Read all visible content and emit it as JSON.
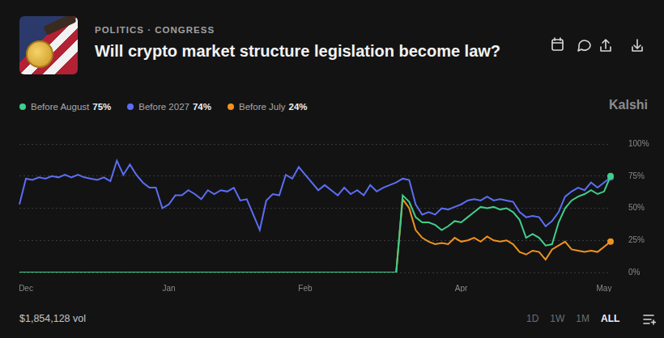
{
  "header": {
    "category": "POLITICS · CONGRESS",
    "title": "Will crypto market structure legislation become law?",
    "watermark": "Kalshi"
  },
  "chart_data": {
    "type": "line",
    "categories": [
      null,
      "Dec",
      null,
      null,
      null,
      null,
      null,
      null,
      null,
      null,
      null,
      null,
      null,
      null,
      null,
      null,
      null,
      null,
      null,
      null,
      null,
      null,
      null,
      "Jan",
      null,
      null,
      null,
      null,
      null,
      null,
      null,
      null,
      null,
      null,
      null,
      null,
      null,
      null,
      null,
      null,
      null,
      null,
      null,
      null,
      "Feb",
      null,
      null,
      null,
      null,
      null,
      null,
      null,
      null,
      null,
      null,
      null,
      null,
      null,
      null,
      null,
      null,
      null,
      null,
      null,
      null,
      null,
      null,
      null,
      "Apr",
      null,
      null,
      null,
      null,
      null,
      null,
      null,
      null,
      null,
      null,
      null,
      null,
      null,
      null,
      null,
      null,
      null,
      null,
      null,
      null,
      null,
      "May",
      null
    ],
    "series": [
      {
        "name": "Before August",
        "color": "#3fcf8a",
        "legend_value": {
          "value": 75,
          "label": "75%"
        },
        "values": [
          0,
          0,
          0,
          0,
          0,
          0,
          0,
          0,
          0,
          0,
          0,
          0,
          0,
          0,
          0,
          0,
          0,
          0,
          0,
          0,
          0,
          0,
          0,
          0,
          0,
          0,
          0,
          0,
          0,
          0,
          0,
          0,
          0,
          0,
          0,
          0,
          0,
          0,
          0,
          0,
          0,
          0,
          0,
          0,
          0,
          0,
          0,
          0,
          0,
          0,
          0,
          0,
          0,
          0,
          0,
          0,
          0,
          0,
          0,
          60,
          55,
          43,
          39,
          39,
          37,
          33,
          36,
          40,
          39,
          43,
          47,
          51,
          50,
          51,
          49,
          50,
          47,
          41,
          27,
          30,
          27,
          21,
          22,
          39,
          50,
          56,
          59,
          61,
          64,
          61,
          63,
          75
        ]
      },
      {
        "name": "Before 2027",
        "color": "#5b6ef2",
        "legend_value": {
          "value": 74,
          "label": "74%"
        },
        "values": [
          53,
          73,
          72,
          74,
          73,
          75,
          74,
          76,
          74,
          76,
          74,
          73,
          72,
          74,
          71,
          87,
          76,
          84,
          76,
          70,
          66,
          66,
          50,
          53,
          60,
          60,
          64,
          61,
          57,
          64,
          61,
          64,
          63,
          66,
          56,
          57,
          45,
          33,
          56,
          61,
          60,
          76,
          73,
          82,
          76,
          70,
          64,
          68,
          64,
          60,
          66,
          61,
          64,
          60,
          68,
          63,
          66,
          68,
          70,
          73,
          72,
          53,
          45,
          47,
          45,
          50,
          49,
          51,
          53,
          56,
          57,
          56,
          59,
          56,
          57,
          56,
          55,
          47,
          43,
          44,
          43,
          36,
          40,
          47,
          59,
          63,
          66,
          64,
          70,
          66,
          70,
          74
        ]
      },
      {
        "name": "Before July",
        "color": "#f0921f",
        "legend_value": {
          "value": 24,
          "label": "24%"
        },
        "values": [
          0,
          0,
          0,
          0,
          0,
          0,
          0,
          0,
          0,
          0,
          0,
          0,
          0,
          0,
          0,
          0,
          0,
          0,
          0,
          0,
          0,
          0,
          0,
          0,
          0,
          0,
          0,
          0,
          0,
          0,
          0,
          0,
          0,
          0,
          0,
          0,
          0,
          0,
          0,
          0,
          0,
          0,
          0,
          0,
          0,
          0,
          0,
          0,
          0,
          0,
          0,
          0,
          0,
          0,
          0,
          0,
          0,
          0,
          0,
          57,
          50,
          33,
          27,
          24,
          22,
          23,
          22,
          27,
          24,
          25,
          27,
          24,
          28,
          25,
          24,
          25,
          22,
          16,
          14,
          17,
          16,
          10,
          18,
          21,
          24,
          18,
          17,
          16,
          17,
          16,
          20,
          24
        ]
      }
    ],
    "ylim": [
      0,
      100
    ],
    "yticks": [
      {
        "value": 0,
        "label": "0%"
      },
      {
        "value": 25,
        "label": "25%"
      },
      {
        "value": 50,
        "label": "50%"
      },
      {
        "value": 75,
        "label": "75%"
      },
      {
        "value": 100,
        "label": "100%"
      }
    ],
    "grid": true,
    "legend": "top"
  },
  "footer": {
    "volume": "$1,854,128 vol",
    "ranges": [
      "1D",
      "1W",
      "1M",
      "ALL"
    ],
    "selected_range": "ALL"
  }
}
